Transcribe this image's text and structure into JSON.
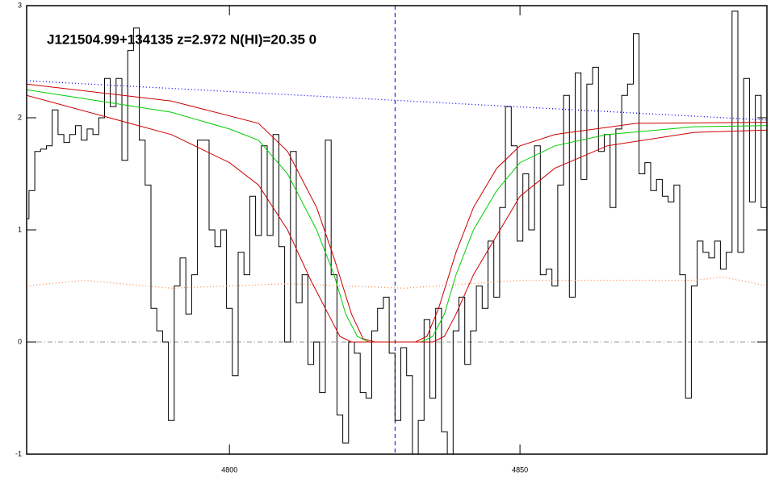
{
  "chart_data": {
    "type": "line",
    "title": "J121504.99+134135 z=2.972 N(HI)=20.35 0",
    "xlim": [
      4765.1,
      4892.5
    ],
    "ylim": [
      -1,
      3
    ],
    "xticks": [
      4800,
      4850
    ],
    "yticks": [
      -1,
      0,
      1,
      2,
      3
    ],
    "vline": 4828.5,
    "vline_color": "#0000cc",
    "hline": 0,
    "hline_color": "#999999",
    "x": [
      4765,
      4766,
      4767,
      4768,
      4769,
      4770,
      4771,
      4772,
      4773,
      4774,
      4775,
      4776,
      4777,
      4778,
      4779,
      4780,
      4781,
      4782,
      4783,
      4784,
      4785,
      4786,
      4787,
      4788,
      4789,
      4790,
      4791,
      4792,
      4793,
      4794,
      4795,
      4796,
      4797,
      4798,
      4799,
      4800,
      4801,
      4802,
      4803,
      4804,
      4805,
      4806,
      4807,
      4808,
      4809,
      4810,
      4811,
      4812,
      4813,
      4814,
      4815,
      4816,
      4817,
      4818,
      4819,
      4820,
      4821,
      4822,
      4823,
      4824,
      4825,
      4826,
      4827,
      4828,
      4829,
      4830,
      4831,
      4832,
      4833,
      4834,
      4835,
      4836,
      4837,
      4838,
      4839,
      4840,
      4841,
      4842,
      4843,
      4844,
      4845,
      4846,
      4847,
      4848,
      4849,
      4850,
      4851,
      4852,
      4853,
      4854,
      4855,
      4856,
      4857,
      4858,
      4859,
      4860,
      4861,
      4862,
      4863,
      4864,
      4865,
      4866,
      4867,
      4868,
      4869,
      4870,
      4871,
      4872,
      4873,
      4874,
      4875,
      4876,
      4877,
      4878,
      4879,
      4880,
      4881,
      4882,
      4883,
      4884,
      4885,
      4886,
      4887,
      4888,
      4889,
      4890,
      4891,
      4892
    ],
    "series": [
      {
        "color": "#000000",
        "style": "step",
        "values": [
          1.1,
          1.35,
          1.7,
          1.72,
          1.75,
          2.07,
          1.85,
          1.78,
          1.85,
          1.93,
          1.8,
          1.9,
          1.85,
          2.0,
          2.35,
          2.1,
          2.35,
          1.62,
          2.6,
          2.8,
          1.8,
          1.4,
          0.3,
          0.1,
          0.0,
          -0.7,
          0.5,
          0.75,
          0.25,
          0.6,
          1.8,
          1.8,
          1.0,
          0.85,
          1.0,
          0.3,
          -0.3,
          0.8,
          0.6,
          1.3,
          0.95,
          1.75,
          0.95,
          1.85,
          0.85,
          0.0,
          1.7,
          0.35,
          0.6,
          -0.2,
          0.0,
          -0.45,
          1.8,
          0.6,
          -0.65,
          -0.9,
          0.0,
          -0.1,
          -0.45,
          -0.5,
          0.1,
          0.3,
          0.4,
          -0.1,
          -0.7,
          -0.05,
          -0.3,
          -1.0,
          -0.7,
          0.2,
          -0.5,
          0.3,
          -0.8,
          -1.0,
          0.1,
          0.4,
          -0.2,
          0.1,
          0.5,
          0.3,
          0.9,
          0.4,
          1.2,
          2.1,
          1.75,
          0.9,
          1.5,
          1.0,
          1.75,
          0.6,
          0.65,
          0.5,
          1.4,
          2.2,
          0.4,
          2.4,
          1.45,
          2.3,
          2.45,
          1.7,
          1.85,
          1.2,
          1.9,
          2.2,
          2.3,
          2.75,
          1.5,
          1.6,
          1.35,
          1.45,
          1.3,
          1.25,
          1.4,
          0.6,
          -0.5,
          0.5,
          0.9,
          0.8,
          0.75,
          0.9,
          0.65,
          0.8,
          2.95,
          0.8,
          2.35,
          1.25,
          2.2,
          1.2
        ]
      },
      {
        "color": "#0000ff",
        "style": "dotted",
        "x": [
          4765.1,
          4892.5
        ],
        "values": [
          2.33,
          1.98
        ]
      },
      {
        "color": "#ff8c40",
        "style": "dotted",
        "x": [
          4765.1,
          4775,
          4790,
          4810,
          4830,
          4850,
          4880,
          4885,
          4892.5
        ],
        "values": [
          0.5,
          0.55,
          0.48,
          0.52,
          0.48,
          0.55,
          0.55,
          0.58,
          0.5
        ]
      },
      {
        "color": "#00cc00",
        "style": "solid",
        "x": [
          4765.1,
          4790,
          4800,
          4805,
          4810,
          4815,
          4818,
          4820,
          4822,
          4824,
          4833,
          4835,
          4837,
          4839,
          4842,
          4846,
          4850,
          4856,
          4865,
          4880,
          4892.5
        ],
        "values": [
          2.25,
          2.05,
          1.9,
          1.8,
          1.5,
          1.0,
          0.6,
          0.25,
          0.05,
          0,
          0,
          0.05,
          0.25,
          0.6,
          1.0,
          1.35,
          1.6,
          1.75,
          1.85,
          1.92,
          1.93
        ]
      },
      {
        "color": "#cc0000",
        "style": "solid",
        "x": [
          4765.1,
          4790,
          4805,
          4810,
          4815,
          4818,
          4821,
          4823,
          4825,
          4832,
          4834,
          4836,
          4839,
          4842,
          4846,
          4850,
          4856,
          4870,
          4892.5
        ],
        "values": [
          2.3,
          2.15,
          1.95,
          1.7,
          1.2,
          0.75,
          0.25,
          0.03,
          0,
          0,
          0.05,
          0.3,
          0.8,
          1.2,
          1.55,
          1.75,
          1.85,
          1.95,
          1.96
        ]
      },
      {
        "color": "#cc0000",
        "style": "solid",
        "x": [
          4765.1,
          4790,
          4800,
          4805,
          4810,
          4814,
          4817,
          4819,
          4821,
          4835,
          4837,
          4839,
          4842,
          4846,
          4850,
          4856,
          4865,
          4880,
          4892.5
        ],
        "values": [
          2.2,
          1.85,
          1.6,
          1.4,
          1.0,
          0.55,
          0.25,
          0.05,
          0,
          0,
          0.05,
          0.25,
          0.6,
          0.95,
          1.3,
          1.55,
          1.75,
          1.87,
          1.89
        ]
      }
    ]
  }
}
